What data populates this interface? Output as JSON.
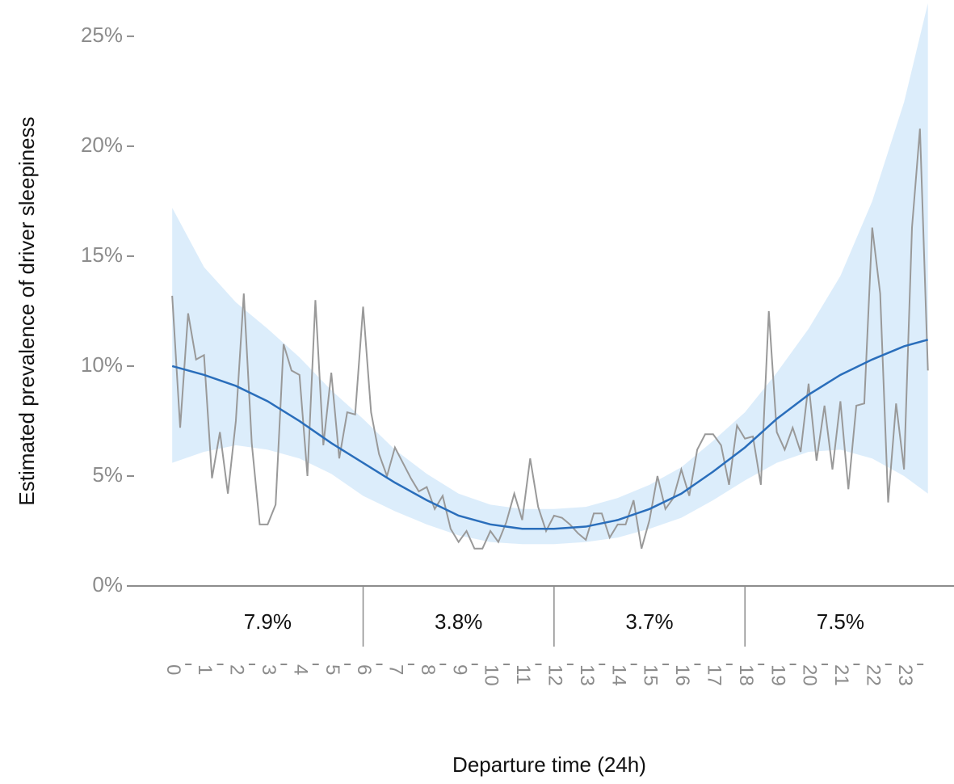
{
  "chart_data": {
    "type": "line",
    "x_label": "Departure time (24h)",
    "y_label": "Estimated prevalence of driver sleepiness",
    "xlim": [
      -1.35,
      24.57
    ],
    "ylim": [
      0,
      26.65
    ],
    "xticks": [
      0,
      1,
      2,
      3,
      4,
      5,
      6,
      7,
      8,
      9,
      10,
      11,
      12,
      13,
      14,
      15,
      16,
      17,
      18,
      19,
      20,
      21,
      22,
      23
    ],
    "yticks": [
      {
        "value": 0,
        "label": "0%"
      },
      {
        "value": 5,
        "label": "5%"
      },
      {
        "value": 10,
        "label": "10%"
      },
      {
        "value": 15,
        "label": "15%"
      },
      {
        "value": 20,
        "label": "20%"
      },
      {
        "value": 25,
        "label": "25%"
      }
    ],
    "observed": {
      "color": "#999999",
      "x": [
        0,
        0.25,
        0.5,
        0.75,
        1,
        1.25,
        1.5,
        1.75,
        2,
        2.25,
        2.5,
        2.75,
        3,
        3.25,
        3.5,
        3.75,
        4,
        4.25,
        4.5,
        4.75,
        5,
        5.25,
        5.5,
        5.75,
        6,
        6.25,
        6.5,
        6.75,
        7,
        7.25,
        7.5,
        7.75,
        8,
        8.25,
        8.5,
        8.75,
        9,
        9.25,
        9.5,
        9.75,
        10,
        10.25,
        10.5,
        10.75,
        11,
        11.25,
        11.5,
        11.75,
        12,
        12.25,
        12.5,
        12.75,
        13,
        13.25,
        13.5,
        13.75,
        14,
        14.25,
        14.5,
        14.75,
        15,
        15.25,
        15.5,
        15.75,
        16,
        16.25,
        16.5,
        16.75,
        17,
        17.25,
        17.5,
        17.75,
        18,
        18.25,
        18.5,
        18.75,
        19,
        19.25,
        19.5,
        19.75,
        20,
        20.25,
        20.5,
        20.75,
        21,
        21.25,
        21.5,
        21.75,
        22,
        22.25,
        22.5,
        22.75,
        23,
        23.25,
        23.5,
        23.75
      ],
      "values": [
        13.2,
        7.2,
        12.4,
        10.3,
        10.5,
        4.9,
        7.0,
        4.2,
        7.5,
        13.3,
        6.5,
        2.8,
        2.8,
        3.7,
        11.0,
        9.8,
        9.6,
        5.0,
        13.0,
        6.4,
        9.7,
        5.8,
        7.9,
        7.8,
        12.7,
        7.9,
        6.0,
        5.0,
        6.3,
        5.6,
        4.9,
        4.3,
        4.5,
        3.5,
        4.1,
        2.6,
        2.0,
        2.5,
        1.7,
        1.7,
        2.5,
        2.0,
        2.9,
        4.2,
        3.0,
        5.8,
        3.6,
        2.5,
        3.2,
        3.1,
        2.8,
        2.4,
        2.1,
        3.3,
        3.3,
        2.2,
        2.8,
        2.8,
        3.9,
        1.7,
        3.0,
        5.0,
        3.5,
        4.0,
        5.3,
        4.1,
        6.2,
        6.9,
        6.9,
        6.4,
        4.6,
        7.3,
        6.7,
        6.8,
        4.6,
        12.5,
        7.0,
        6.2,
        7.2,
        6.1,
        9.2,
        5.7,
        8.2,
        5.3,
        8.4,
        4.4,
        8.2,
        8.3,
        16.3,
        13.3,
        3.8,
        8.3,
        5.3,
        16.3,
        20.8,
        9.8
      ]
    },
    "fit": {
      "color": "#2a6ebb",
      "band_color": "#dcedfb",
      "x": [
        0,
        1,
        2,
        3,
        4,
        5,
        6,
        7,
        8,
        9,
        10,
        11,
        12,
        13,
        14,
        15,
        16,
        17,
        18,
        19,
        20,
        21,
        22,
        23,
        23.75
      ],
      "values": [
        10.0,
        9.6,
        9.1,
        8.4,
        7.5,
        6.5,
        5.6,
        4.7,
        3.9,
        3.2,
        2.8,
        2.6,
        2.6,
        2.7,
        3.0,
        3.5,
        4.2,
        5.2,
        6.3,
        7.6,
        8.7,
        9.6,
        10.3,
        10.9,
        11.2
      ],
      "upper": [
        17.2,
        14.5,
        12.9,
        11.7,
        10.4,
        8.9,
        7.6,
        6.2,
        5.1,
        4.2,
        3.7,
        3.5,
        3.5,
        3.6,
        4.0,
        4.6,
        5.4,
        6.6,
        7.9,
        9.7,
        11.7,
        14.1,
        17.5,
        22.0,
        26.5
      ],
      "lower": [
        5.6,
        6.1,
        6.4,
        6.2,
        5.8,
        5.1,
        4.1,
        3.4,
        2.8,
        2.3,
        2.0,
        1.9,
        1.9,
        2.0,
        2.2,
        2.6,
        3.1,
        3.9,
        4.8,
        5.6,
        6.1,
        6.2,
        5.8,
        5.0,
        4.2
      ]
    },
    "periods": {
      "centers": [
        3,
        9,
        15,
        21
      ],
      "boundaries": [
        6,
        12,
        18
      ],
      "values": [
        7.9,
        3.8,
        3.7,
        7.5
      ],
      "value_labels": [
        "7.9%",
        "3.8%",
        "3.7%",
        "7.5%"
      ]
    }
  }
}
